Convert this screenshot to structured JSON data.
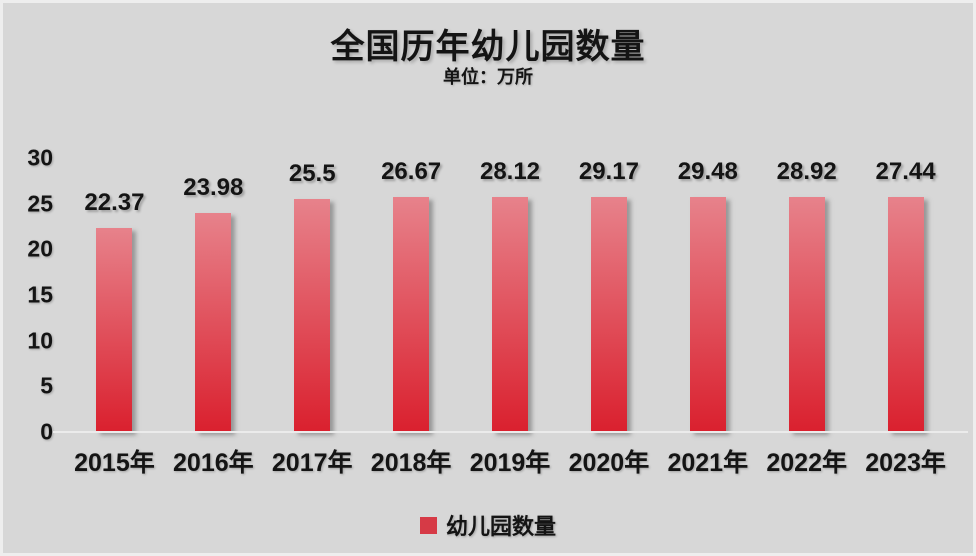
{
  "page": {
    "background_color": "#d7d7d7",
    "text_color": "#141414"
  },
  "chart_data": {
    "type": "bar",
    "title": "全国历年幼儿园数量",
    "subtitle": "单位：万所",
    "categories": [
      "2015年",
      "2016年",
      "2017年",
      "2018年",
      "2019年",
      "2020年",
      "2021年",
      "2022年",
      "2023年"
    ],
    "values": [
      22.37,
      23.98,
      25.5,
      26.67,
      28.12,
      29.17,
      29.48,
      28.92,
      27.44
    ],
    "value_labels": [
      "22.37",
      "23.98",
      "25.5",
      "26.67",
      "28.12",
      "29.17",
      "29.48",
      "28.92",
      "27.44"
    ],
    "ylim": [
      0,
      30
    ],
    "yticks": [
      0,
      5,
      10,
      15,
      20,
      25,
      30
    ],
    "grid": false,
    "legend_position": "bottom",
    "legend": [
      {
        "label": "幼儿园数量",
        "color": "#d63a46"
      }
    ],
    "bar_color_top": "#e7828b",
    "bar_color_bottom": "#da202e"
  }
}
